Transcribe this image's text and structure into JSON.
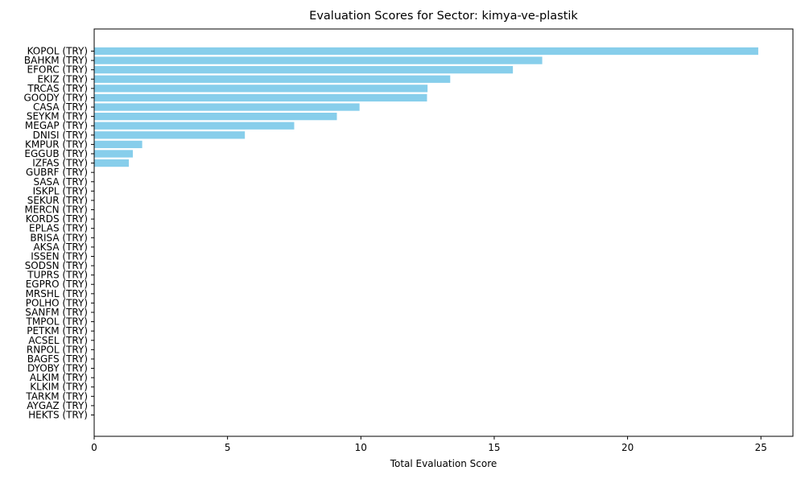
{
  "chart_data": {
    "type": "bar",
    "orientation": "horizontal",
    "title": "Evaluation Scores for Sector: kimya-ve-plastik",
    "xlabel": "Total Evaluation Score",
    "ylabel": "",
    "xlim": [
      0,
      26.2
    ],
    "xticks": [
      0,
      5,
      10,
      15,
      20,
      25
    ],
    "bar_color": "#87ceeb",
    "grid": false,
    "categories": [
      "KOPOL (TRY)",
      "BAHKM (TRY)",
      "EFORC (TRY)",
      "EKIZ (TRY)",
      "TRCAS (TRY)",
      "GOODY (TRY)",
      "CASA (TRY)",
      "SEYKM (TRY)",
      "MEGAP (TRY)",
      "DNISI (TRY)",
      "KMPUR (TRY)",
      "EGGUB (TRY)",
      "IZFAS (TRY)",
      "GUBRF (TRY)",
      "SASA (TRY)",
      "ISKPL (TRY)",
      "SEKUR (TRY)",
      "MERCN (TRY)",
      "KORDS (TRY)",
      "EPLAS (TRY)",
      "BRISA (TRY)",
      "AKSA (TRY)",
      "ISSEN (TRY)",
      "SODSN (TRY)",
      "TUPRS (TRY)",
      "EGPRO (TRY)",
      "MRSHL (TRY)",
      "POLHO (TRY)",
      "SANFM (TRY)",
      "TMPOL (TRY)",
      "PETKM (TRY)",
      "ACSEL (TRY)",
      "RNPOL (TRY)",
      "BAGFS (TRY)",
      "DYOBY (TRY)",
      "ALKIM (TRY)",
      "KLKIM (TRY)",
      "TARKM (TRY)",
      "AYGAZ (TRY)",
      "HEKTS (TRY)"
    ],
    "values": [
      24.9,
      16.8,
      15.7,
      13.35,
      12.5,
      12.48,
      9.95,
      9.1,
      7.5,
      5.65,
      1.8,
      1.45,
      1.3,
      0,
      0,
      0,
      0,
      0,
      0,
      0,
      0,
      0,
      0,
      0,
      0,
      0,
      0,
      0,
      0,
      0,
      0,
      0,
      0,
      0,
      0,
      0,
      0,
      0,
      0,
      0
    ]
  }
}
